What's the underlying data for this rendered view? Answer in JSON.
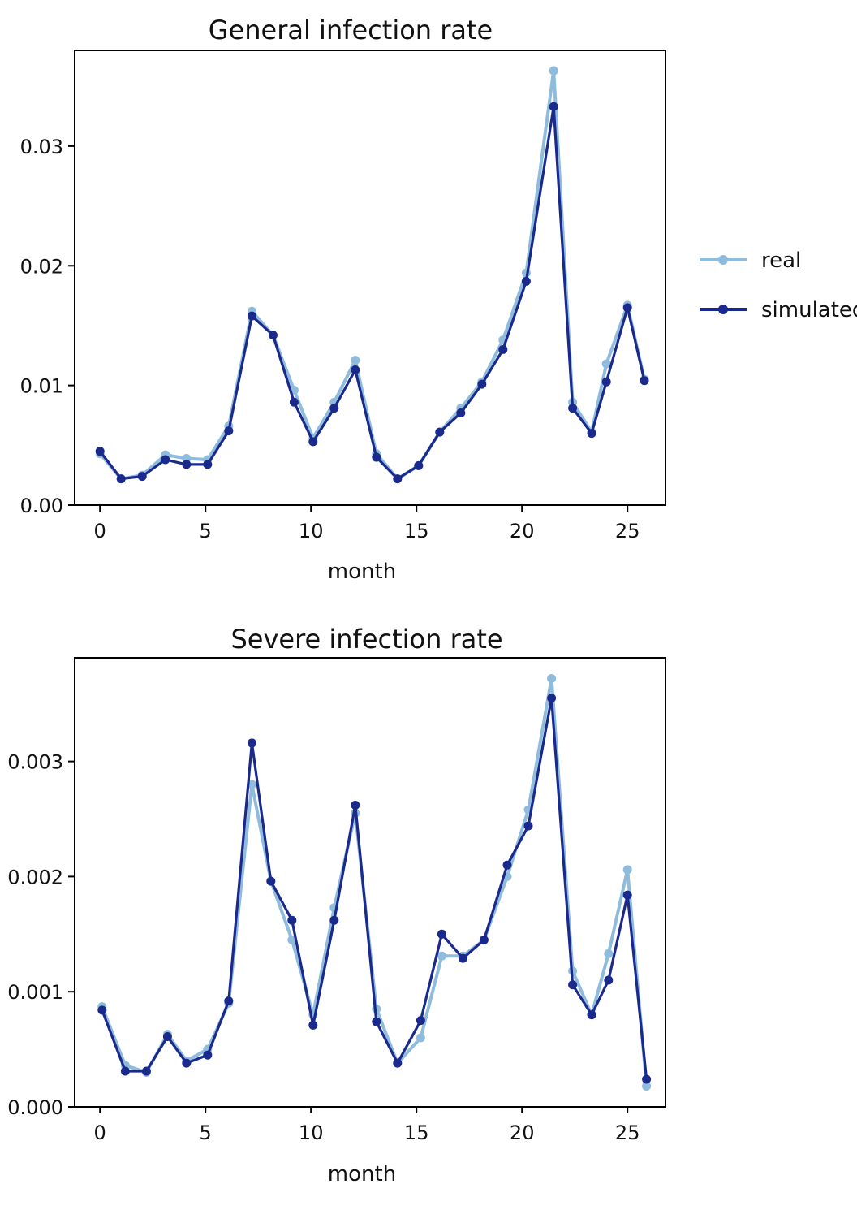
{
  "legend": {
    "placement": "right",
    "entries": [
      {
        "label": "real",
        "color": "#8fbcdc"
      },
      {
        "label": "simulated",
        "color": "#1a2a8c"
      }
    ]
  },
  "chart_data": [
    {
      "type": "line",
      "title": "General infection rate",
      "xlabel": "month",
      "ylabel": "",
      "xlim": [
        -1.2,
        26.8
      ],
      "ylim": [
        0.0,
        0.038
      ],
      "xticks": [
        0,
        5,
        10,
        15,
        20,
        25
      ],
      "yticks": [
        0.0,
        0.01,
        0.02,
        0.03
      ],
      "ytick_labels": [
        "0.00",
        "0.01",
        "0.02",
        "0.03"
      ],
      "x": [
        0,
        1,
        2,
        3,
        4,
        5,
        6,
        7,
        8,
        9,
        10,
        11,
        12,
        13,
        14,
        15,
        16,
        17,
        18,
        19,
        20,
        21,
        22,
        23,
        24,
        25,
        26
      ],
      "x_positions": [
        0,
        1,
        2,
        3.1,
        4.1,
        5.1,
        6.1,
        7.2,
        8.2,
        9.2,
        10.1,
        11.1,
        12.1,
        13.1,
        14.1,
        15.1,
        16.1,
        17.1,
        18.1,
        19.1,
        20.2,
        21.5,
        22.4,
        23.3,
        24,
        25,
        25.8
      ],
      "series": [
        {
          "name": "real",
          "values": [
            0.0043,
            0.0022,
            0.0025,
            0.0042,
            0.0039,
            0.0038,
            0.0066,
            0.0162,
            0.0142,
            0.0096,
            0.0056,
            0.0086,
            0.0121,
            0.0043,
            0.0022,
            0.0033,
            0.0061,
            0.0081,
            0.0103,
            0.0138,
            0.0194,
            0.0363,
            0.0086,
            0.0061,
            0.0118,
            0.0167,
            0.0105
          ]
        },
        {
          "name": "simulated",
          "values": [
            0.0045,
            0.0022,
            0.0024,
            0.0038,
            0.0034,
            0.0034,
            0.0062,
            0.0158,
            0.0142,
            0.0086,
            0.0053,
            0.0081,
            0.0113,
            0.004,
            0.0022,
            0.0033,
            0.0061,
            0.0077,
            0.0101,
            0.013,
            0.0187,
            0.0333,
            0.0081,
            0.006,
            0.0103,
            0.0165,
            0.0104
          ]
        }
      ],
      "grid": false
    },
    {
      "type": "line",
      "title": "Severe infection rate",
      "xlabel": "month",
      "ylabel": "",
      "xlim": [
        -1.2,
        26.8
      ],
      "ylim": [
        0.0,
        0.0039
      ],
      "xticks": [
        0,
        5,
        10,
        15,
        20,
        25
      ],
      "yticks": [
        0.0,
        0.001,
        0.002,
        0.003
      ],
      "ytick_labels": [
        "0.000",
        "0.001",
        "0.002",
        "0.003"
      ],
      "x": [
        0,
        1,
        2,
        3,
        4,
        5,
        6,
        7,
        8,
        9,
        10,
        11,
        12,
        13,
        14,
        15,
        16,
        17,
        18,
        19,
        20,
        21,
        22,
        23,
        24,
        25,
        26
      ],
      "x_positions": [
        0.1,
        1.2,
        2.2,
        3.2,
        4.1,
        5.1,
        6.1,
        7.2,
        8.1,
        9.1,
        10.1,
        11.1,
        12.1,
        13.1,
        14.1,
        15.2,
        16.2,
        17.2,
        18.2,
        19.3,
        20.3,
        21.4,
        22.4,
        23.3,
        24.1,
        25,
        25.9
      ],
      "series": [
        {
          "name": "real",
          "values": [
            0.00087,
            0.00036,
            0.0003,
            0.00063,
            0.0004,
            0.0005,
            0.0009,
            0.0028,
            0.00196,
            0.00145,
            0.0008,
            0.00173,
            0.00255,
            0.00085,
            0.00038,
            0.0006,
            0.00131,
            0.00131,
            0.00145,
            0.002,
            0.00258,
            0.00372,
            0.00118,
            0.0008,
            0.00133,
            0.00206,
            0.00018
          ]
        },
        {
          "name": "simulated",
          "values": [
            0.00084,
            0.00031,
            0.00031,
            0.00061,
            0.00038,
            0.00045,
            0.00092,
            0.00316,
            0.00196,
            0.00162,
            0.00071,
            0.00162,
            0.00262,
            0.00074,
            0.00038,
            0.00075,
            0.0015,
            0.00129,
            0.00145,
            0.0021,
            0.00244,
            0.00355,
            0.00106,
            0.0008,
            0.0011,
            0.00184,
            0.00024
          ]
        }
      ],
      "grid": false
    }
  ]
}
